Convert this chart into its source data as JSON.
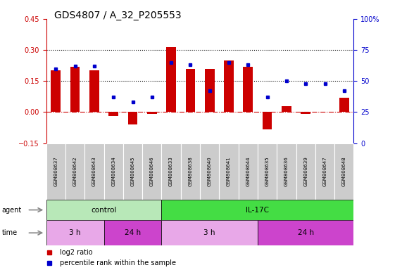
{
  "title": "GDS4807 / A_32_P205553",
  "samples": [
    "GSM808637",
    "GSM808642",
    "GSM808643",
    "GSM808634",
    "GSM808645",
    "GSM808646",
    "GSM808633",
    "GSM808638",
    "GSM808640",
    "GSM808641",
    "GSM808644",
    "GSM808635",
    "GSM808636",
    "GSM808639",
    "GSM808647",
    "GSM808648"
  ],
  "log2_ratio": [
    0.2,
    0.22,
    0.2,
    -0.02,
    -0.06,
    -0.01,
    0.315,
    0.21,
    0.21,
    0.25,
    0.22,
    -0.085,
    0.03,
    -0.01,
    0.0,
    0.07
  ],
  "percentile": [
    60,
    62,
    62,
    37,
    33,
    37,
    65,
    63,
    42,
    65,
    63,
    37,
    50,
    48,
    48,
    42
  ],
  "bar_color": "#cc0000",
  "dot_color": "#0000cc",
  "ylim_left": [
    -0.15,
    0.45
  ],
  "ylim_right": [
    0,
    100
  ],
  "yticks_left": [
    -0.15,
    0.0,
    0.15,
    0.3,
    0.45
  ],
  "yticks_right": [
    0,
    25,
    50,
    75,
    100
  ],
  "hline_vals": [
    0.15,
    0.3
  ],
  "zero_line": 0.0,
  "agent_groups": [
    {
      "label": "control",
      "start": 0,
      "end": 6,
      "color": "#b8e8b8"
    },
    {
      "label": "IL-17C",
      "start": 6,
      "end": 16,
      "color": "#44dd44"
    }
  ],
  "time_groups": [
    {
      "label": "3 h",
      "start": 0,
      "end": 3,
      "color": "#e8a8e8"
    },
    {
      "label": "24 h",
      "start": 3,
      "end": 6,
      "color": "#cc44cc"
    },
    {
      "label": "3 h",
      "start": 6,
      "end": 11,
      "color": "#e8a8e8"
    },
    {
      "label": "24 h",
      "start": 11,
      "end": 16,
      "color": "#cc44cc"
    }
  ],
  "legend_items": [
    {
      "label": "log2 ratio",
      "color": "#cc0000"
    },
    {
      "label": "percentile rank within the sample",
      "color": "#0000cc"
    }
  ],
  "axis_color_left": "#cc0000",
  "axis_color_right": "#0000cc",
  "label_box_color": "#cccccc",
  "title_fontsize": 10,
  "bar_width": 0.5
}
